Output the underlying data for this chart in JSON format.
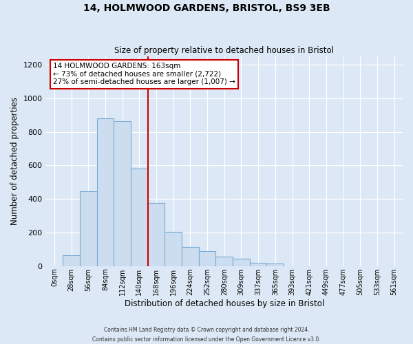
{
  "title": "14, HOLMWOOD GARDENS, BRISTOL, BS9 3EB",
  "subtitle": "Size of property relative to detached houses in Bristol",
  "xlabel": "Distribution of detached houses by size in Bristol",
  "ylabel": "Number of detached properties",
  "bar_labels": [
    "0sqm",
    "28sqm",
    "56sqm",
    "84sqm",
    "112sqm",
    "140sqm",
    "168sqm",
    "196sqm",
    "224sqm",
    "252sqm",
    "280sqm",
    "309sqm",
    "337sqm",
    "365sqm",
    "393sqm",
    "421sqm",
    "449sqm",
    "477sqm",
    "505sqm",
    "533sqm",
    "561sqm"
  ],
  "bar_values": [
    0,
    65,
    445,
    880,
    865,
    580,
    375,
    205,
    115,
    90,
    57,
    42,
    18,
    15,
    0,
    0,
    0,
    0,
    0,
    0,
    0
  ],
  "bar_color": "#ccddf0",
  "bar_edge_color": "#7aabcf",
  "vline_x": 5.5,
  "vline_color": "#cc0000",
  "ylim": [
    0,
    1250
  ],
  "yticks": [
    0,
    200,
    400,
    600,
    800,
    1000,
    1200
  ],
  "annotation_title": "14 HOLMWOOD GARDENS: 163sqm",
  "annotation_line1": "← 73% of detached houses are smaller (2,722)",
  "annotation_line2": "27% of semi-detached houses are larger (1,007) →",
  "annotation_box_color": "#ffffff",
  "annotation_box_edge": "#cc0000",
  "footer1": "Contains HM Land Registry data © Crown copyright and database right 2024.",
  "footer2": "Contains public sector information licensed under the Open Government Licence v3.0.",
  "bg_color": "#dce8f5",
  "plot_bg_color": "#dce8f5",
  "grid_color": "#ffffff"
}
